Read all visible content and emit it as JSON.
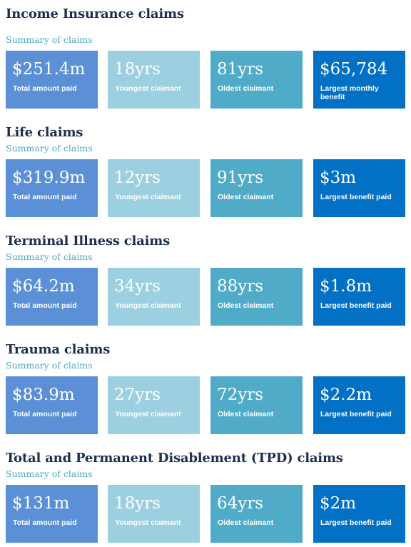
{
  "colors": {
    "heading": "#1d2f4f",
    "subheading": "#4aa8c6",
    "tile_total": "#5b8fd6",
    "tile_youngest": "#9ccfdf",
    "tile_oldest": "#4fabc7",
    "tile_largest": "#0270c4"
  },
  "sections": [
    {
      "title": "Income Insurance claims",
      "subtitle": "Summary of claims",
      "stats": [
        {
          "value": "$251.4m",
          "label": "Total amount paid"
        },
        {
          "value": "18yrs",
          "label": "Youngest claimant"
        },
        {
          "value": "81yrs",
          "label": "Oldest claimant"
        },
        {
          "value": "$65,784",
          "label": "Largest monthly benefit"
        }
      ]
    },
    {
      "title": "Life claims",
      "subtitle": "Summary of claims",
      "stats": [
        {
          "value": "$319.9m",
          "label": "Total amount paid"
        },
        {
          "value": "12yrs",
          "label": "Youngest claimant"
        },
        {
          "value": "91yrs",
          "label": "Oldest claimant"
        },
        {
          "value": "$3m",
          "label": "Largest benefit paid"
        }
      ]
    },
    {
      "title": "Terminal Illness claims",
      "subtitle": "Summary of claims",
      "stats": [
        {
          "value": "$64.2m",
          "label": "Total amount paid"
        },
        {
          "value": "34yrs",
          "label": "Youngest claimant"
        },
        {
          "value": "88yrs",
          "label": "Oldest claimant"
        },
        {
          "value": "$1.8m",
          "label": "Largest benefit paid"
        }
      ]
    },
    {
      "title": "Trauma claims",
      "subtitle": "Summary of claims",
      "stats": [
        {
          "value": "$83.9m",
          "label": "Total amount paid"
        },
        {
          "value": "27yrs",
          "label": "Youngest claimant"
        },
        {
          "value": "72yrs",
          "label": "Oldest claimant"
        },
        {
          "value": "$2.2m",
          "label": "Largest benefit paid"
        }
      ]
    },
    {
      "title": "Total and Permanent Disablement (TPD) claims",
      "subtitle": "Summary of claims",
      "stats": [
        {
          "value": "$131m",
          "label": "Total amount paid"
        },
        {
          "value": "18yrs",
          "label": "Youngest claimant"
        },
        {
          "value": "64yrs",
          "label": "Oldest claimant"
        },
        {
          "value": "$2m",
          "label": "Largest benefit paid"
        }
      ]
    }
  ]
}
